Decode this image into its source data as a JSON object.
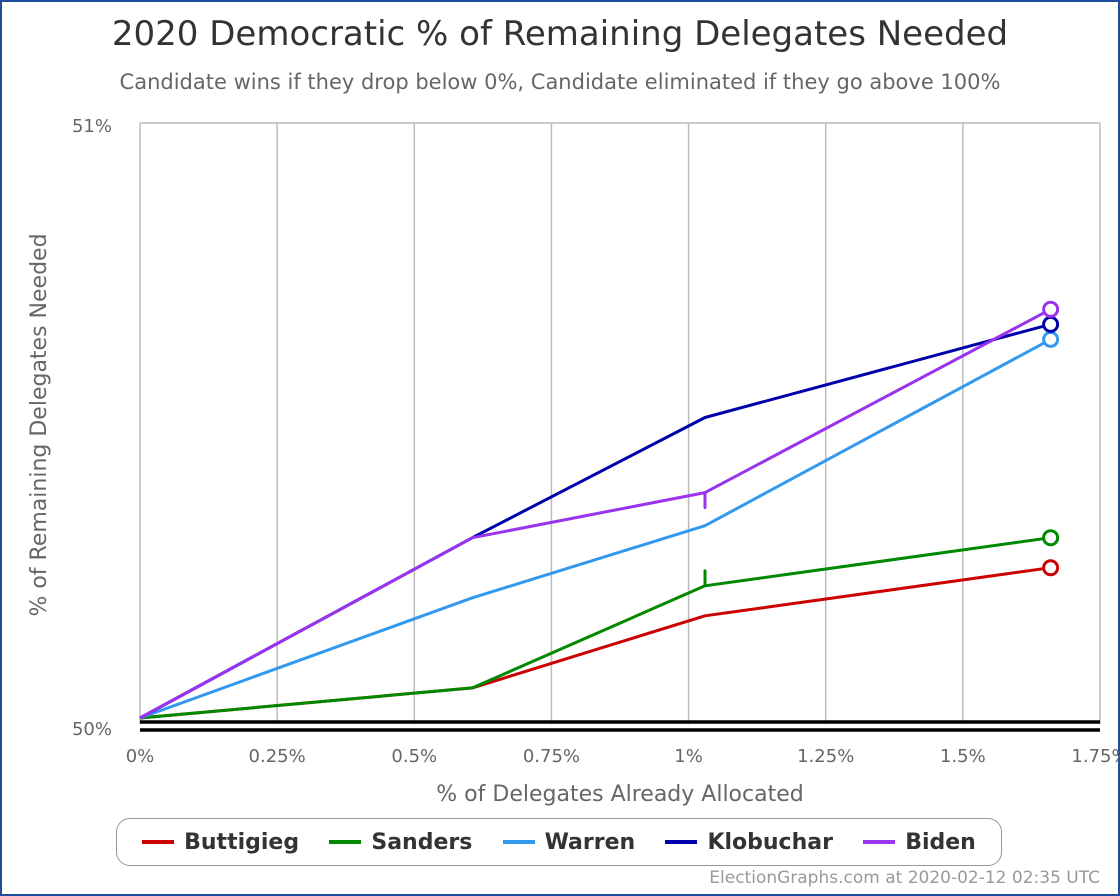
{
  "header": {
    "title": "2020 Democratic % of Remaining Delegates Needed",
    "subtitle": "Candidate wins if they drop below 0%, Candidate eliminated if they go above 100%"
  },
  "footer": {
    "credit": "ElectionGraphs.com at 2020-02-12 02:35 UTC"
  },
  "chart_data": {
    "type": "line",
    "title": "2020 Democratic % of Remaining Delegates Needed",
    "subtitle": "Candidate wins if they drop below 0%, Candidate eliminated if they go above 100%",
    "xlabel": "% of Delegates Already Allocated",
    "ylabel": "% of Remaining Delegates Needed",
    "xlim": [
      0,
      1.75
    ],
    "ylim": [
      50,
      51
    ],
    "x_ticks": [
      0,
      0.25,
      0.5,
      0.75,
      1,
      1.25,
      1.5,
      1.75
    ],
    "x_tick_labels": [
      "0%",
      "0.25%",
      "0.5%",
      "0.75%",
      "1%",
      "1.25%",
      "1.5%",
      "1.75%"
    ],
    "y_tick_labels": [
      "50%",
      "51%"
    ],
    "grid": "vertical",
    "legend_position": "bottom",
    "series": [
      {
        "name": "Buttigieg",
        "color": "#cc0000",
        "points": [
          [
            0,
            50.01
          ],
          [
            0.606,
            50.06
          ],
          [
            1.03,
            50.18
          ],
          [
            1.66,
            50.26
          ]
        ]
      },
      {
        "name": "Sanders",
        "color": "#008800",
        "points": [
          [
            0,
            50.01
          ],
          [
            0.606,
            50.06
          ],
          [
            1.03,
            50.23
          ],
          [
            1.03,
            50.255
          ],
          [
            1.03,
            50.23
          ],
          [
            1.66,
            50.31
          ]
        ]
      },
      {
        "name": "Warren",
        "color": "#3399ee",
        "points": [
          [
            0,
            50.01
          ],
          [
            0.606,
            50.21
          ],
          [
            1.03,
            50.33
          ],
          [
            1.66,
            50.64
          ]
        ]
      },
      {
        "name": "Klobuchar",
        "color": "#0000aa",
        "points": [
          [
            0,
            50.01
          ],
          [
            0.606,
            50.31
          ],
          [
            1.03,
            50.51
          ],
          [
            1.66,
            50.665
          ]
        ]
      },
      {
        "name": "Biden",
        "color": "#9933ee",
        "points": [
          [
            0,
            50.01
          ],
          [
            0.606,
            50.31
          ],
          [
            1.03,
            50.385
          ],
          [
            1.03,
            50.36
          ],
          [
            1.03,
            50.385
          ],
          [
            1.66,
            50.69
          ]
        ]
      }
    ]
  }
}
